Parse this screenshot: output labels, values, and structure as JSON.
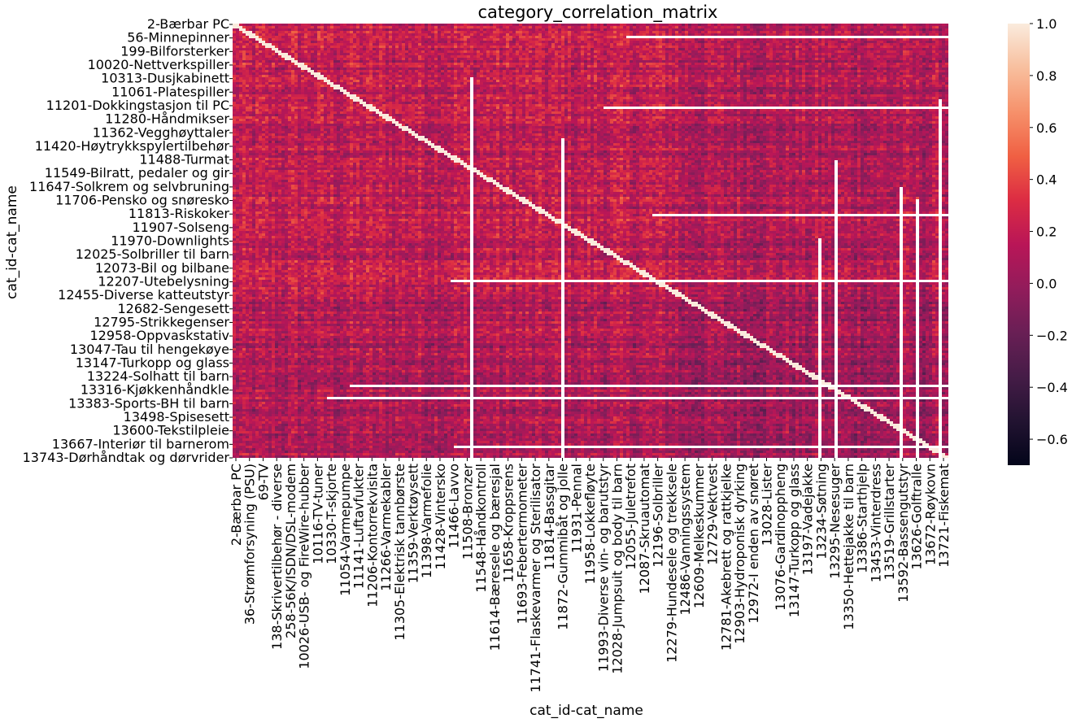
{
  "chart_data": {
    "type": "heatmap",
    "title": "category_correlation_matrix",
    "xlabel": "cat_id-cat_name",
    "ylabel": "cat_id-cat_name",
    "colormap": "rocket",
    "value_range": [
      -0.7,
      1.0
    ],
    "colorbar_ticks": [
      1.0,
      0.8,
      0.6,
      0.4,
      0.2,
      0.0,
      -0.2,
      -0.4,
      -0.6
    ],
    "colorbar_tick_labels": [
      "1.0",
      "0.8",
      "0.6",
      "0.4",
      "0.2",
      "0.0",
      "−0.2",
      "−0.4",
      "−0.6"
    ],
    "row_tick_labels": [
      "2-Bærbar PC",
      "56-Minnepinner",
      "199-Bilforsterker",
      "10020-Nettverkspiller",
      "10313-Dusjkabinett",
      "11061-Platespiller",
      "11201-Dokkingstasjon til PC",
      "11280-Håndmikser",
      "11362-Vegghøyttaler",
      "11420-Høytrykkspylertilbehør",
      "11488-Turmat",
      "11549-Bilratt, pedaler og gir",
      "11647-Solkrem og selvbruning",
      "11706-Pensko og snøresko",
      "11813-Riskoker",
      "11907-Solseng",
      "11970-Downlights",
      "12025-Solbriller til barn",
      "12073-Bil og bilbane",
      "12207-Utebelysning",
      "12455-Diverse katteutstyr",
      "12682-Sengesett",
      "12795-Strikkegenser",
      "12958-Oppvaskstativ",
      "13047-Tau til hengekøye",
      "13147-Turkopp og glass",
      "13224-Solhatt til barn",
      "13316-Kjøkkenhåndkle",
      "13383-Sports-BH til barn",
      "13498-Spisesett",
      "13600-Tekstilpleie",
      "13667-Interiør til barnerom",
      "13743-Dørhåndtak og dørvrider"
    ],
    "column_tick_labels": [
      "2-Bærbar PC",
      "36-Strømforsyning (PSU)",
      "69-TV",
      "138-Skrivertilbehør - diverse",
      "258-56K/ISDN/DSL-modem",
      "10026-USB- og FireWire-hubber",
      "10116-TV-tuner",
      "10330-T-skjorte",
      "11054-Varmepumpe",
      "11141-Luftavfukter",
      "11206-Kontorrekvisita",
      "11266-Varmekabler",
      "11305-Elektrisk tannbørste",
      "11359-Verktøysett",
      "11398-Varmefolie",
      "11428-Vintersko",
      "11466-Lavvo",
      "11508-Bronzer",
      "11548-Håndkontroll",
      "11614-Bæresele og bæresjal",
      "11658-Kroppsrens",
      "11693-Febertermometer",
      "11741-Flaskevarmer og Sterilisator",
      "11814-Bassgitar",
      "11872-Gummibåt og jolle",
      "11931-Pennal",
      "11958-Lokkefløyte",
      "11993-Diverse vin- og barutstyr",
      "12028-Jumpsuit og body til barn",
      "12055-Juletrefot",
      "12087-Skruautomat",
      "12196-Solbriller",
      "12279-Hundesele og trekksele",
      "12486-Vanningssystem",
      "12609-Melkeskummer",
      "12729-Vektvest",
      "12781-Akebrett og rattkjelke",
      "12903-Hydroponisk dyrking",
      "12972-I enden av snøret",
      "13028-Lister",
      "13076-Gardinoppheng",
      "13147-Turkopp og glass",
      "13197-Vadejakke",
      "13234-Søtning",
      "13295-Nesesuger",
      "13350-Hettejakke til barn",
      "13386-Starthjelp",
      "13453-Vinterdress",
      "13519-Grillstarter",
      "13592-Bassengutstyr",
      "13626-Golftralle",
      "13672-Røykovn",
      "13721-Fiskemat"
    ]
  }
}
